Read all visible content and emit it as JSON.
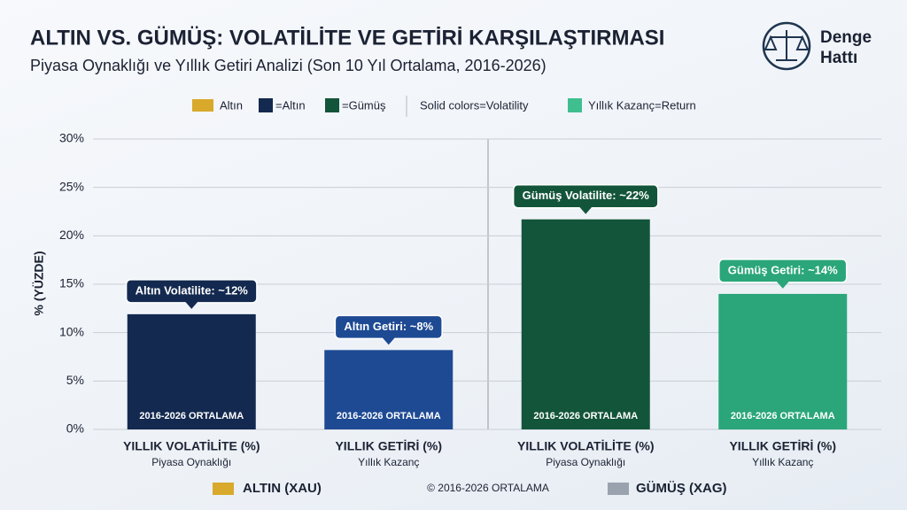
{
  "chart_data": {
    "type": "bar",
    "title": "ALTIN VS. GÜMÜŞ: VOLATİLİTE VE GETİRİ KARŞILAŞTIRMASI",
    "subtitle": "Piyasa Oynaklığı ve Yıllık Getiri Analizi (Son 10 Yıl Ortalama, 2016-2026)",
    "logo": [
      "Denge",
      "Hattı"
    ],
    "legend": [
      "Altın",
      "=Altın",
      "=Gümüş",
      "Solid colors=Volatility",
      "Yıllık Kazanç=Return"
    ],
    "legend_colors": [
      "#13294f",
      "#13553a",
      "#3fbf8f"
    ],
    "y_label": "% (YÜZDE)",
    "categories": [
      "YILLIK VOLATİLİTE (%)",
      "YILLIK GETİRİ (%)",
      "YILLIK VOLATİLİTE (%)",
      "YILLIK GETİRİ (%)"
    ],
    "category_subtitles": [
      "Piyasa Oynaklığı",
      "Yıllık Kazanç",
      "Piyasa Oynaklığı",
      "Yıllık Kazanç"
    ],
    "values": [
      11.9,
      8.2,
      21.7,
      14.0
    ],
    "value_labels": [
      "Altın Volatilite: ~12%",
      "Altın Getiri: ~8%",
      "Gümüş Volatilite: ~22%",
      "Gümüş Getiri: ~14%"
    ],
    "colors": [
      "#13294f",
      "#1e4a93",
      "#13553a",
      "#2aa67a"
    ],
    "bar_inner_label": "2016-2026 ORTALAMA",
    "groups": [
      "ALTIN (XAU)",
      "GÜMÜŞ (XAG)"
    ],
    "footer": "© 2016-2026 ORTALAMA",
    "ylim": [
      0,
      30
    ],
    "yticks": [
      {
        "value": 0,
        "label": "0%"
      },
      {
        "value": 5,
        "label": "5%"
      },
      {
        "value": 10,
        "label": "10%"
      },
      {
        "value": 15,
        "label": "15%"
      },
      {
        "value": 20,
        "label": "20%"
      },
      {
        "value": 25,
        "label": "25%"
      },
      {
        "value": 30,
        "label": "30%"
      }
    ],
    "grid": true
  }
}
